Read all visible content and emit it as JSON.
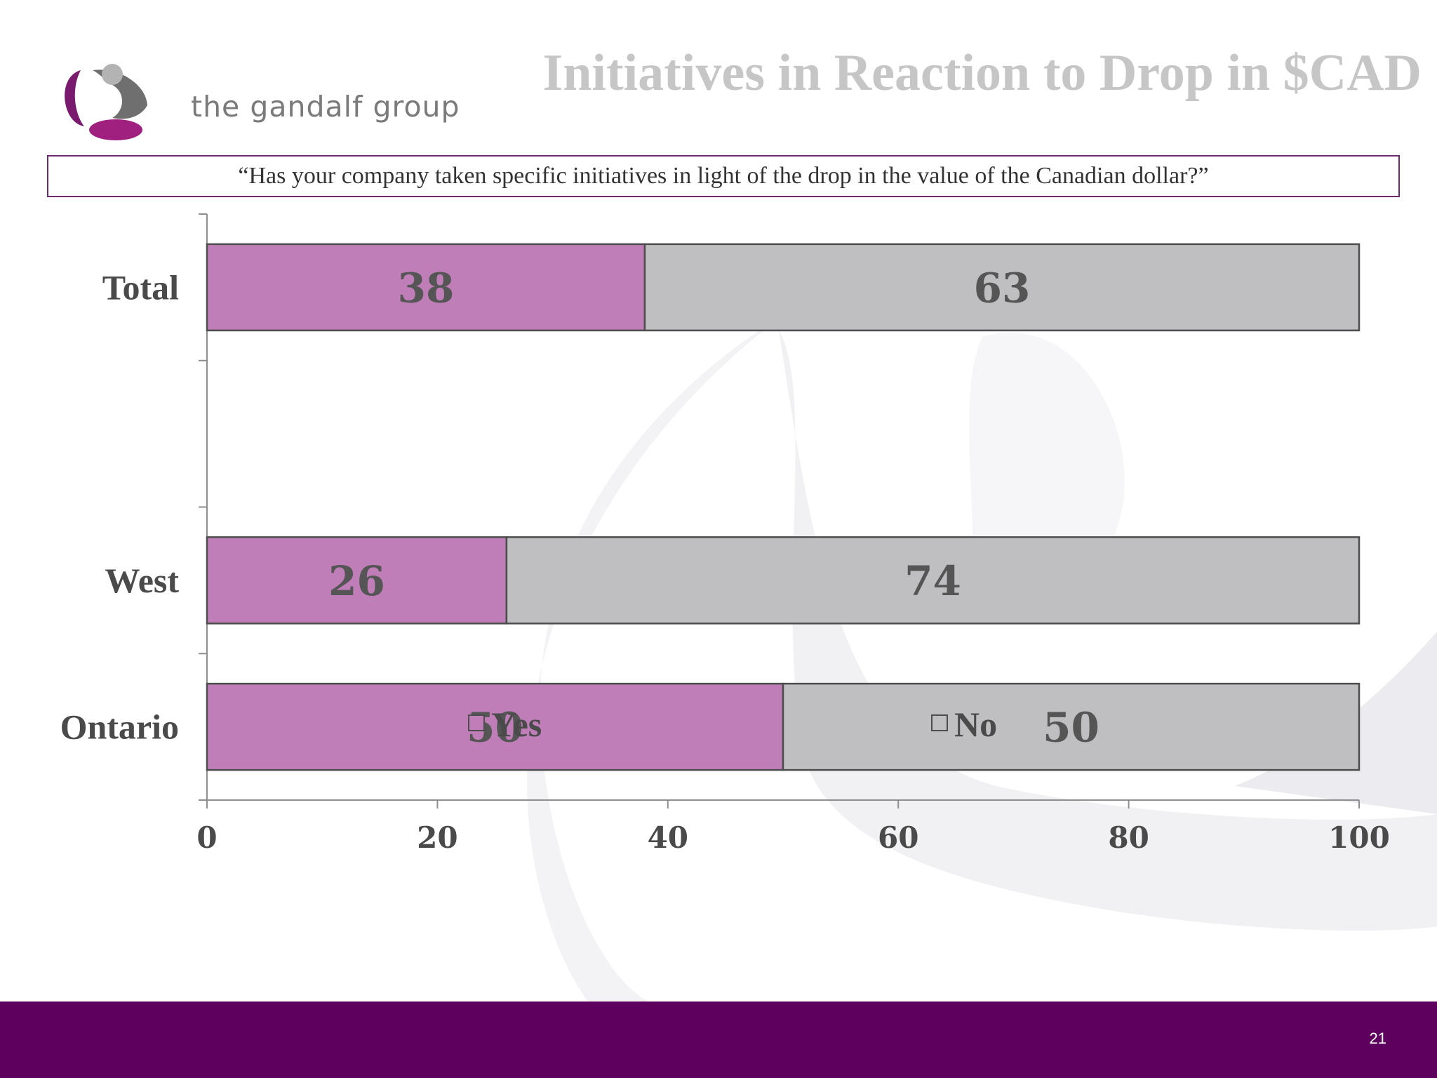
{
  "header": {
    "logo_text": "the gandalf group",
    "title": "Initiatives in Reaction to Drop in $CAD"
  },
  "question": "“Has your company taken specific initiatives in light of the drop in the value of the Canadian dollar?”",
  "chart_data": {
    "type": "bar",
    "orientation": "horizontal",
    "stacked": true,
    "categories": [
      "Total",
      "",
      "West",
      "Ontario"
    ],
    "series": [
      {
        "name": "Yes",
        "values": [
          38,
          null,
          26,
          50
        ],
        "color": "#bf7eb7"
      },
      {
        "name": "No",
        "values": [
          63,
          null,
          74,
          50
        ],
        "color": "#bfbfc1"
      }
    ],
    "xlim": [
      0,
      100
    ],
    "xticks": [
      0,
      20,
      40,
      60,
      80,
      100
    ],
    "tick_labels": [
      "0",
      "20",
      "40",
      "60",
      "80",
      "100"
    ],
    "legend_position": "bottom",
    "grid": false
  },
  "footer": {
    "page_number": "21",
    "color": "#5e005e"
  }
}
